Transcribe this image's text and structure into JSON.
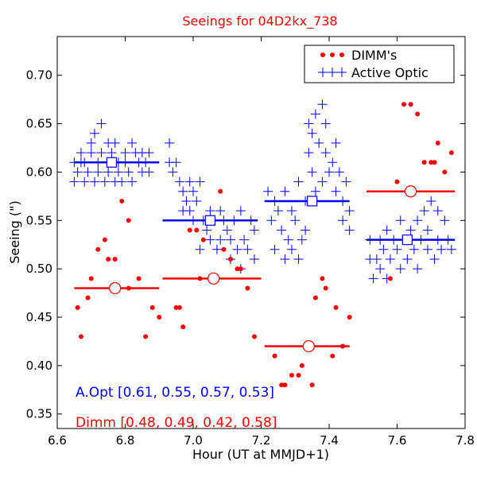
{
  "chart_data": {
    "type": "scatter",
    "title": "Seeings for 04D2kx_738",
    "xlabel": "Hour (UT at MMJD+1)",
    "ylabel": "Seeing (\")",
    "xlim": [
      6.6,
      7.8
    ],
    "ylim": [
      0.335,
      0.74
    ],
    "xticks": [
      6.6,
      6.8,
      7.0,
      7.2,
      7.4,
      7.6,
      7.8
    ],
    "xtick_labels": [
      "6.6",
      "6.8",
      "7.0",
      "7.2",
      "7.4",
      "7.6",
      "7.8"
    ],
    "yticks": [
      0.35,
      0.4,
      0.45,
      0.5,
      0.55,
      0.6,
      0.65,
      0.7
    ],
    "ytick_labels": [
      "0.35",
      "0.40",
      "0.45",
      "0.50",
      "0.55",
      "0.60",
      "0.65",
      "0.70"
    ],
    "grid": false,
    "legend_position": "top-right",
    "colors": {
      "dimm": "#ff0000",
      "aopt": "#0000ff",
      "title": "#ff0000"
    },
    "series": [
      {
        "name": "DIMM's",
        "marker": "dot",
        "color": "#ff0000",
        "points": [
          [
            6.66,
            0.46
          ],
          [
            6.67,
            0.43
          ],
          [
            6.69,
            0.47
          ],
          [
            6.7,
            0.49
          ],
          [
            6.72,
            0.52
          ],
          [
            6.74,
            0.53
          ],
          [
            6.75,
            0.51
          ],
          [
            6.77,
            0.51
          ],
          [
            6.79,
            0.57
          ],
          [
            6.81,
            0.55
          ],
          [
            6.81,
            0.48
          ],
          [
            6.84,
            0.49
          ],
          [
            6.86,
            0.43
          ],
          [
            6.88,
            0.46
          ],
          [
            6.9,
            0.45
          ],
          [
            6.95,
            0.46
          ],
          [
            6.96,
            0.46
          ],
          [
            6.97,
            0.44
          ],
          [
            6.99,
            0.54
          ],
          [
            7.01,
            0.54
          ],
          [
            7.02,
            0.49
          ],
          [
            7.03,
            0.53
          ],
          [
            7.06,
            0.49
          ],
          [
            7.08,
            0.58
          ],
          [
            7.09,
            0.52
          ],
          [
            7.11,
            0.51
          ],
          [
            7.13,
            0.5
          ],
          [
            7.14,
            0.5
          ],
          [
            7.16,
            0.48
          ],
          [
            7.18,
            0.43
          ],
          [
            7.24,
            0.41
          ],
          [
            7.26,
            0.38
          ],
          [
            7.27,
            0.38
          ],
          [
            7.29,
            0.39
          ],
          [
            7.31,
            0.39
          ],
          [
            7.32,
            0.4
          ],
          [
            7.34,
            0.42
          ],
          [
            7.35,
            0.38
          ],
          [
            7.36,
            0.47
          ],
          [
            7.38,
            0.49
          ],
          [
            7.39,
            0.48
          ],
          [
            7.41,
            0.41
          ],
          [
            7.42,
            0.46
          ],
          [
            7.44,
            0.42
          ],
          [
            7.46,
            0.45
          ],
          [
            7.58,
            0.49
          ],
          [
            7.6,
            0.59
          ],
          [
            7.62,
            0.67
          ],
          [
            7.64,
            0.67
          ],
          [
            7.66,
            0.66
          ],
          [
            7.68,
            0.61
          ],
          [
            7.7,
            0.61
          ],
          [
            7.71,
            0.61
          ],
          [
            7.72,
            0.63
          ],
          [
            7.74,
            0.6
          ],
          [
            7.76,
            0.62
          ]
        ]
      },
      {
        "name": "Active Optic",
        "marker": "plus",
        "color": "#0000ff",
        "points": [
          [
            6.65,
            0.61
          ],
          [
            6.65,
            0.59
          ],
          [
            6.66,
            0.6
          ],
          [
            6.67,
            0.61
          ],
          [
            6.67,
            0.62
          ],
          [
            6.68,
            0.61
          ],
          [
            6.68,
            0.59
          ],
          [
            6.69,
            0.6
          ],
          [
            6.7,
            0.62
          ],
          [
            6.7,
            0.63
          ],
          [
            6.71,
            0.64
          ],
          [
            6.71,
            0.59
          ],
          [
            6.72,
            0.6
          ],
          [
            6.72,
            0.61
          ],
          [
            6.73,
            0.62
          ],
          [
            6.73,
            0.65
          ],
          [
            6.74,
            0.59
          ],
          [
            6.75,
            0.63
          ],
          [
            6.75,
            0.6
          ],
          [
            6.76,
            0.62
          ],
          [
            6.77,
            0.59
          ],
          [
            6.77,
            0.63
          ],
          [
            6.78,
            0.61
          ],
          [
            6.78,
            0.6
          ],
          [
            6.79,
            0.59
          ],
          [
            6.8,
            0.62
          ],
          [
            6.8,
            0.61
          ],
          [
            6.81,
            0.6
          ],
          [
            6.82,
            0.63
          ],
          [
            6.82,
            0.59
          ],
          [
            6.83,
            0.62
          ],
          [
            6.84,
            0.61
          ],
          [
            6.85,
            0.62
          ],
          [
            6.85,
            0.6
          ],
          [
            6.86,
            0.61
          ],
          [
            6.87,
            0.62
          ],
          [
            6.87,
            0.6
          ],
          [
            6.93,
            0.63
          ],
          [
            6.93,
            0.61
          ],
          [
            6.94,
            0.6
          ],
          [
            6.95,
            0.61
          ],
          [
            6.96,
            0.59
          ],
          [
            6.97,
            0.56
          ],
          [
            6.97,
            0.58
          ],
          [
            6.98,
            0.57
          ],
          [
            6.99,
            0.56
          ],
          [
            6.99,
            0.59
          ],
          [
            7.0,
            0.55
          ],
          [
            7.0,
            0.58
          ],
          [
            7.01,
            0.57
          ],
          [
            7.02,
            0.52
          ],
          [
            7.02,
            0.59
          ],
          [
            7.03,
            0.55
          ],
          [
            7.04,
            0.54
          ],
          [
            7.05,
            0.56
          ],
          [
            7.05,
            0.53
          ],
          [
            7.06,
            0.55
          ],
          [
            7.07,
            0.52
          ],
          [
            7.08,
            0.56
          ],
          [
            7.08,
            0.53
          ],
          [
            7.09,
            0.55
          ],
          [
            7.1,
            0.54
          ],
          [
            7.11,
            0.51
          ],
          [
            7.11,
            0.53
          ],
          [
            7.12,
            0.55
          ],
          [
            7.13,
            0.52
          ],
          [
            7.14,
            0.56
          ],
          [
            7.14,
            0.5
          ],
          [
            7.15,
            0.53
          ],
          [
            7.16,
            0.52
          ],
          [
            7.17,
            0.55
          ],
          [
            7.18,
            0.54
          ],
          [
            7.18,
            0.51
          ],
          [
            7.22,
            0.58
          ],
          [
            7.23,
            0.55
          ],
          [
            7.24,
            0.57
          ],
          [
            7.24,
            0.52
          ],
          [
            7.25,
            0.56
          ],
          [
            7.26,
            0.54
          ],
          [
            7.27,
            0.51
          ],
          [
            7.27,
            0.58
          ],
          [
            7.28,
            0.53
          ],
          [
            7.29,
            0.56
          ],
          [
            7.29,
            0.52
          ],
          [
            7.3,
            0.55
          ],
          [
            7.31,
            0.51
          ],
          [
            7.31,
            0.59
          ],
          [
            7.32,
            0.53
          ],
          [
            7.33,
            0.54
          ],
          [
            7.33,
            0.57
          ],
          [
            7.34,
            0.65
          ],
          [
            7.34,
            0.62
          ],
          [
            7.35,
            0.64
          ],
          [
            7.35,
            0.6
          ],
          [
            7.36,
            0.66
          ],
          [
            7.36,
            0.58
          ],
          [
            7.37,
            0.63
          ],
          [
            7.38,
            0.67
          ],
          [
            7.38,
            0.59
          ],
          [
            7.39,
            0.62
          ],
          [
            7.39,
            0.65
          ],
          [
            7.4,
            0.6
          ],
          [
            7.41,
            0.61
          ],
          [
            7.42,
            0.63
          ],
          [
            7.42,
            0.58
          ],
          [
            7.43,
            0.6
          ],
          [
            7.44,
            0.55
          ],
          [
            7.44,
            0.57
          ],
          [
            7.45,
            0.59
          ],
          [
            7.46,
            0.56
          ],
          [
            7.46,
            0.54
          ],
          [
            7.52,
            0.51
          ],
          [
            7.52,
            0.53
          ],
          [
            7.53,
            0.49
          ],
          [
            7.54,
            0.51
          ],
          [
            7.55,
            0.53
          ],
          [
            7.55,
            0.5
          ],
          [
            7.56,
            0.52
          ],
          [
            7.57,
            0.54
          ],
          [
            7.57,
            0.49
          ],
          [
            7.58,
            0.51
          ],
          [
            7.59,
            0.53
          ],
          [
            7.6,
            0.52
          ],
          [
            7.61,
            0.55
          ],
          [
            7.61,
            0.5
          ],
          [
            7.62,
            0.53
          ],
          [
            7.63,
            0.51
          ],
          [
            7.64,
            0.54
          ],
          [
            7.65,
            0.52
          ],
          [
            7.66,
            0.55
          ],
          [
            7.66,
            0.5
          ],
          [
            7.67,
            0.53
          ],
          [
            7.68,
            0.56
          ],
          [
            7.69,
            0.52
          ],
          [
            7.69,
            0.54
          ],
          [
            7.7,
            0.57
          ],
          [
            7.71,
            0.51
          ],
          [
            7.72,
            0.53
          ],
          [
            7.72,
            0.56
          ],
          [
            7.73,
            0.52
          ],
          [
            7.74,
            0.55
          ],
          [
            7.75,
            0.53
          ],
          [
            7.76,
            0.52
          ]
        ]
      }
    ],
    "segment_means": [
      {
        "series": "DIMM's",
        "color": "#ff0000",
        "segments": [
          {
            "x_start": 6.65,
            "x_end": 6.9,
            "x_mid": 6.77,
            "value": 0.48
          },
          {
            "x_start": 6.91,
            "x_end": 7.2,
            "x_mid": 7.06,
            "value": 0.49
          },
          {
            "x_start": 7.21,
            "x_end": 7.46,
            "x_mid": 7.34,
            "value": 0.42
          },
          {
            "x_start": 7.51,
            "x_end": 7.77,
            "x_mid": 7.64,
            "value": 0.58
          }
        ]
      },
      {
        "series": "Active Optic",
        "color": "#0000ff",
        "segments": [
          {
            "x_start": 6.65,
            "x_end": 6.9,
            "x_mid": 6.76,
            "value": 0.61
          },
          {
            "x_start": 6.91,
            "x_end": 7.19,
            "x_mid": 7.05,
            "value": 0.55
          },
          {
            "x_start": 7.21,
            "x_end": 7.46,
            "x_mid": 7.35,
            "value": 0.57
          },
          {
            "x_start": 7.51,
            "x_end": 7.77,
            "x_mid": 7.63,
            "value": 0.53
          }
        ]
      }
    ],
    "annotations": [
      {
        "text": "A.Opt [0.61, 0.55, 0.57, 0.53]",
        "color": "#0000ff"
      },
      {
        "text": "Dimm [0.48, 0.49, 0.42, 0.58]",
        "color": "#ff0000"
      }
    ]
  }
}
